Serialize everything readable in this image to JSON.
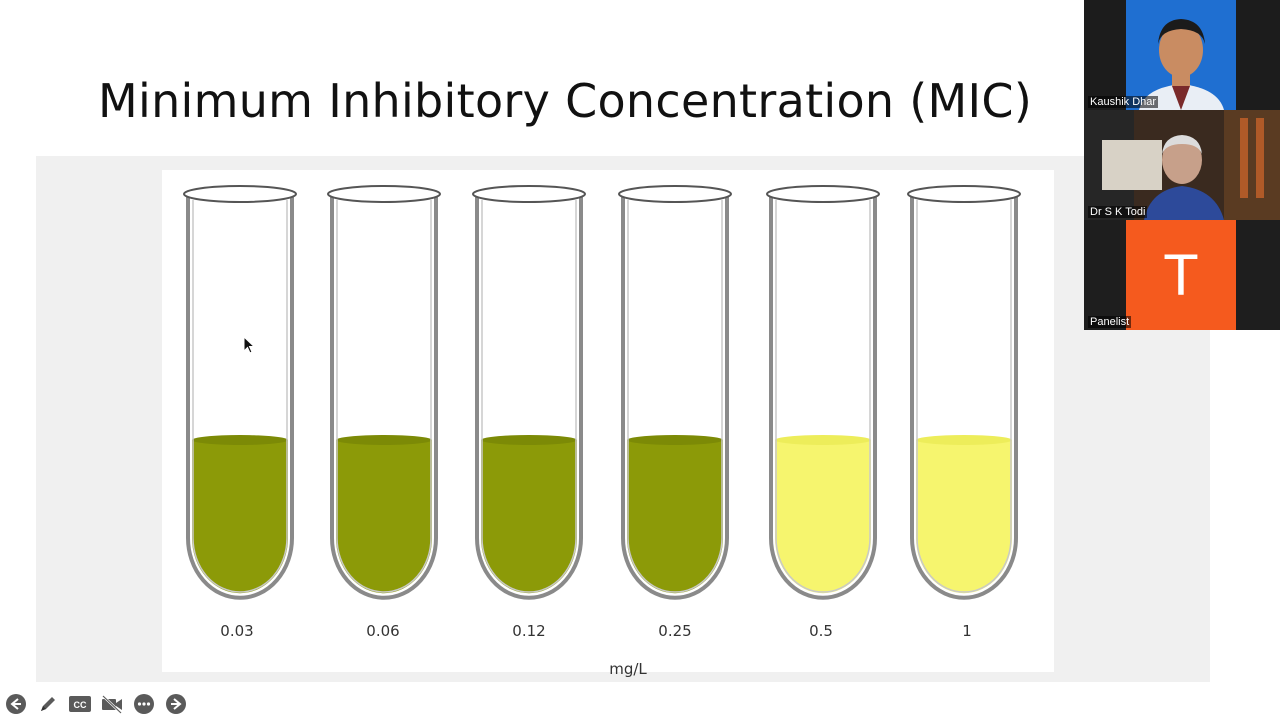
{
  "slide": {
    "title": "Minimum Inhibitory Concentration (MIC)",
    "tubes": [
      {
        "concentration": "0.03",
        "turbid": true
      },
      {
        "concentration": "0.06",
        "turbid": true
      },
      {
        "concentration": "0.12",
        "turbid": true
      },
      {
        "concentration": "0.25",
        "turbid": true
      },
      {
        "concentration": "0.5",
        "turbid": false
      },
      {
        "concentration": "1",
        "turbid": false
      }
    ],
    "unit": "mg/L",
    "colors": {
      "turbid": "#8c9a08",
      "clear": "#f6f56e",
      "glass": "#8a8a8a"
    }
  },
  "participants": [
    {
      "name": "Kaushik Dhar"
    },
    {
      "name": "Dr S K Todi"
    },
    {
      "name": "Panelist",
      "avatar_letter": "T",
      "avatar_color": "#f55a1e"
    }
  ],
  "controls": [
    {
      "icon": "arrow-left-icon"
    },
    {
      "icon": "pen-icon"
    },
    {
      "icon": "captions-icon",
      "label": "CC"
    },
    {
      "icon": "video-off-icon"
    },
    {
      "icon": "more-icon"
    },
    {
      "icon": "arrow-right-icon"
    }
  ]
}
